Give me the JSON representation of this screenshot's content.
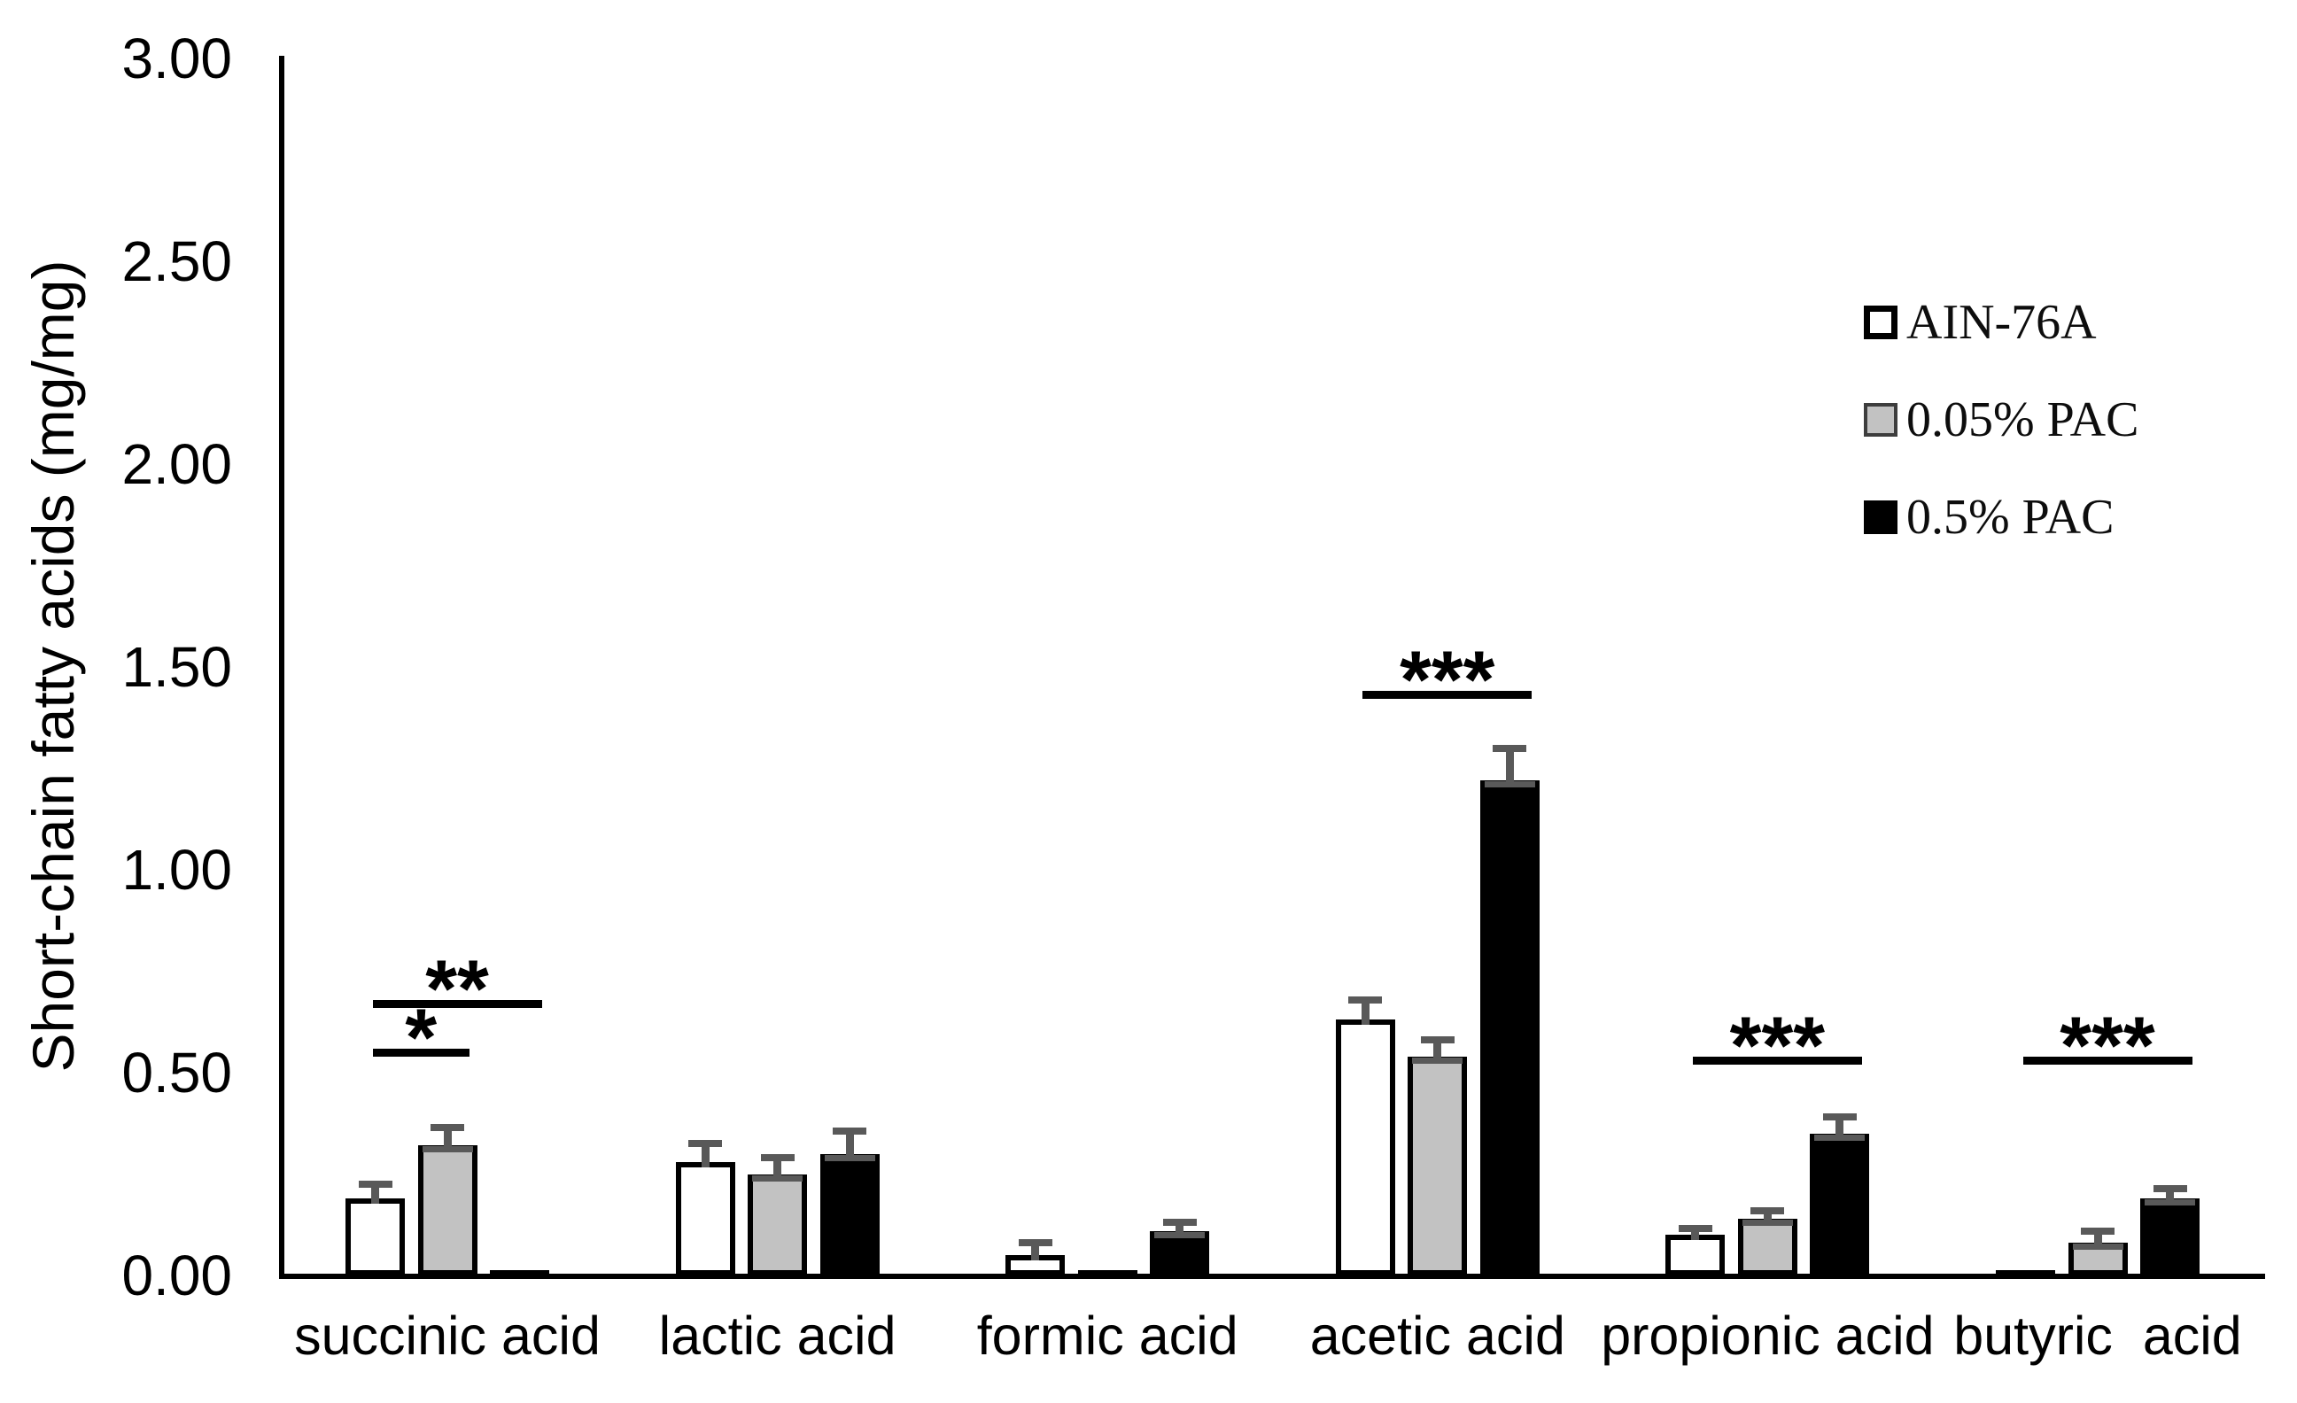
{
  "chart_data": {
    "type": "bar",
    "title": "",
    "xlabel": "",
    "ylabel": "Short-chain fatty acids (mg/mg)",
    "ylim": [
      0,
      3.0
    ],
    "ytick_step": 0.5,
    "ytick_labels": [
      "0.00",
      "0.50",
      "1.00",
      "1.50",
      "2.00",
      "2.50",
      "3.00"
    ],
    "grid": false,
    "legend_position": "upper-right",
    "categories": [
      "succinic acid",
      "lactic acid",
      "formic acid",
      "acetic acid",
      "propionic acid",
      "butyric  acid"
    ],
    "series": [
      {
        "name": "AIN-76A",
        "fill": "#ffffff",
        "border": "#000000",
        "values": [
          0.19,
          0.28,
          0.05,
          0.63,
          0.1,
          0.005
        ],
        "errors": [
          0.035,
          0.045,
          0.03,
          0.05,
          0.015,
          0
        ]
      },
      {
        "name": "0.05% PAC",
        "fill": "#c2c2c2",
        "border": "#000000",
        "values": [
          0.32,
          0.25,
          0.01,
          0.54,
          0.14,
          0.08
        ],
        "errors": [
          0.045,
          0.04,
          0,
          0.04,
          0.02,
          0.03
        ]
      },
      {
        "name": "0.5% PAC",
        "fill": "#000000",
        "border": "#000000",
        "values": [
          0.005,
          0.3,
          0.11,
          1.22,
          0.35,
          0.19
        ],
        "errors": [
          0,
          0.055,
          0.02,
          0.08,
          0.04,
          0.025
        ]
      }
    ],
    "error_bar_color": "#595959",
    "annotations": [
      {
        "label": "**",
        "category_index": 0,
        "from_series": 0,
        "to_series": 2,
        "y_value": 0.68
      },
      {
        "label": "*",
        "category_index": 0,
        "from_series": 0,
        "to_series": 1,
        "y_value": 0.56
      },
      {
        "label": "***",
        "category_index": 3,
        "from_series": 0,
        "to_series": 2,
        "y_value": 1.44
      },
      {
        "label": "***",
        "category_index": 4,
        "from_series": 0,
        "to_series": 2,
        "y_value": 0.54
      },
      {
        "label": "***",
        "category_index": 5,
        "from_series": 0,
        "to_series": 2,
        "y_value": 0.54
      }
    ]
  }
}
